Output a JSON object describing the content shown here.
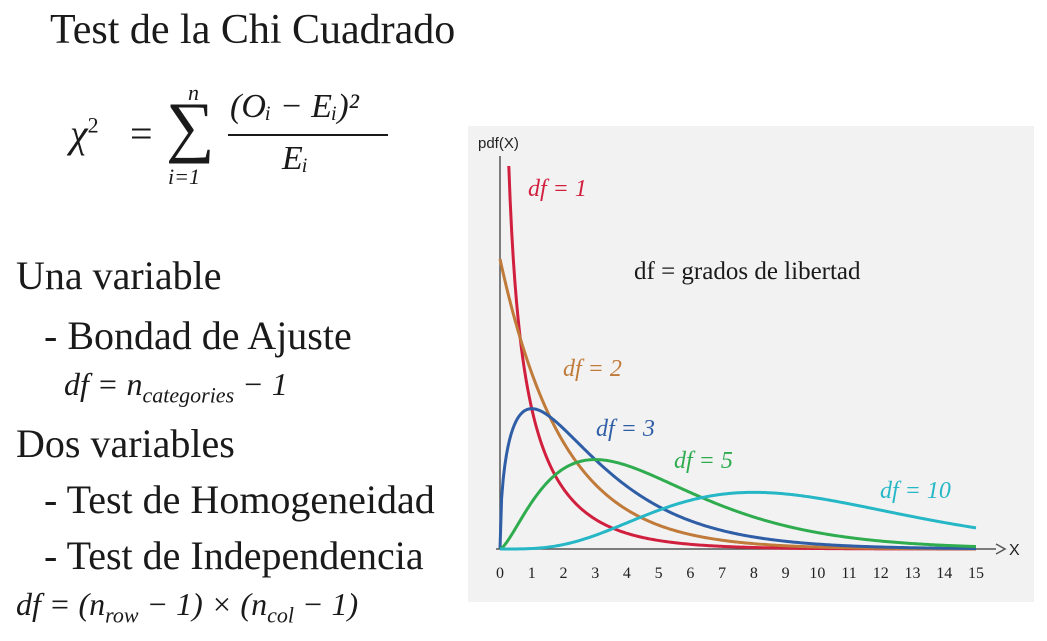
{
  "title": "Test de la Chi Cuadrado",
  "formula": {
    "lhs": "χ",
    "lhs_power": "2",
    "equals": "=",
    "sum_symbol": "∑",
    "sum_upper": "n",
    "sum_lower": "i=1",
    "numerator": "(Oᵢ − Eᵢ)²",
    "denominator": "Eᵢ"
  },
  "one_variable": {
    "heading": "Una variable",
    "item": "- Bondad de Ajuste",
    "df_prefix": "df = n",
    "df_sub": "categories",
    "df_suffix": " − 1"
  },
  "two_variables": {
    "heading": "Dos variables",
    "items": [
      "- Test de Homogeneidad",
      "- Test de Independencia"
    ],
    "df_prefix": "df = (n",
    "df_sub1": "row",
    "df_mid": " − 1) × (n",
    "df_sub2": "col",
    "df_suffix": " − 1)"
  },
  "chart_data": {
    "type": "line",
    "ylabel": "pdf(X)",
    "xlabel": "X",
    "xlim": [
      0,
      15
    ],
    "ylim": [
      0,
      0.6
    ],
    "xticks": [
      "0",
      "1",
      "2",
      "3",
      "4",
      "5",
      "6",
      "7",
      "8",
      "9",
      "10",
      "11",
      "12",
      "13",
      "14",
      "15"
    ],
    "annotation": "df = grados de libertad",
    "grid": false,
    "series": [
      {
        "name": "df = 1",
        "df": 1,
        "color": "#d11f3e"
      },
      {
        "name": "df = 2",
        "df": 2,
        "color": "#c07a3a"
      },
      {
        "name": "df = 3",
        "df": 3,
        "color": "#2f5ea6"
      },
      {
        "name": "df = 5",
        "df": 5,
        "color": "#2eac4e"
      },
      {
        "name": "df = 10",
        "df": 10,
        "color": "#25b7c6"
      }
    ]
  }
}
